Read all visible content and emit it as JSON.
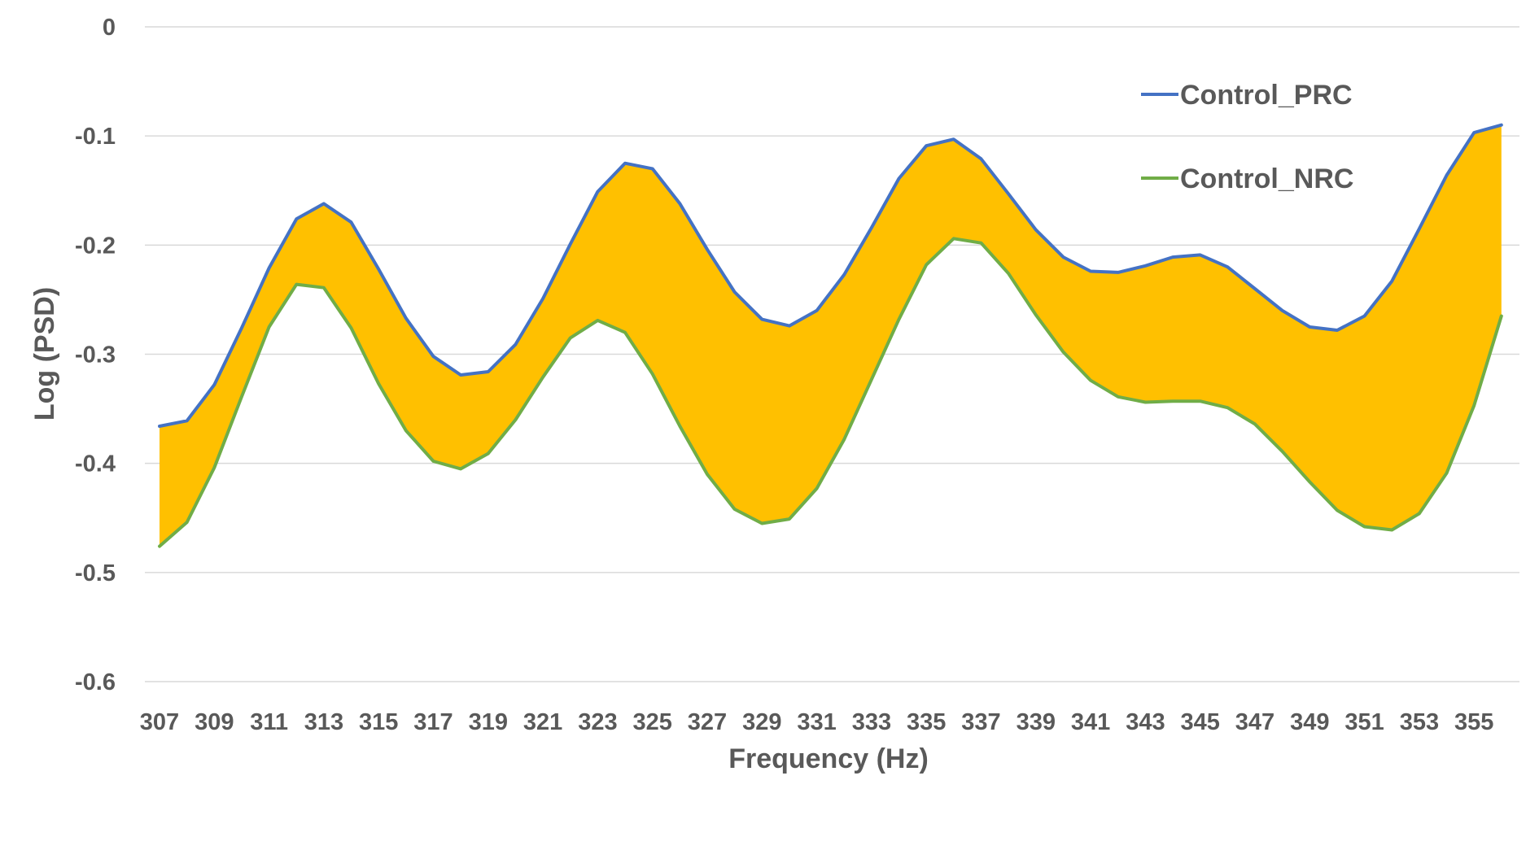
{
  "chart_data": {
    "type": "area",
    "xlabel": "Frequency (Hz)",
    "ylabel": "Log (PSD)",
    "ylim": [
      -0.6,
      0
    ],
    "yticks": [
      "0",
      "-0.1",
      "-0.2",
      "-0.3",
      "-0.4",
      "-0.5",
      "-0.6"
    ],
    "ytick_values": [
      0,
      -0.1,
      -0.2,
      -0.3,
      -0.4,
      -0.5,
      -0.6
    ],
    "xtick_labels": [
      "307",
      "309",
      "311",
      "313",
      "315",
      "317",
      "319",
      "321",
      "323",
      "325",
      "327",
      "329",
      "331",
      "333",
      "335",
      "337",
      "339",
      "341",
      "343",
      "345",
      "347",
      "349",
      "351",
      "353",
      "355"
    ],
    "x": [
      307,
      308,
      309,
      310,
      311,
      312,
      313,
      314,
      315,
      316,
      317,
      318,
      319,
      320,
      321,
      322,
      323,
      324,
      325,
      326,
      327,
      328,
      329,
      330,
      331,
      332,
      333,
      334,
      335,
      336,
      337,
      338,
      339,
      340,
      341,
      342,
      343,
      344,
      345,
      346,
      347,
      348,
      349,
      350,
      351,
      352,
      353,
      354,
      355,
      356
    ],
    "grid": true,
    "legend_position": "top-right",
    "fill_between_color": "#FFC000",
    "series": [
      {
        "name": "Control_PRC",
        "color": "#4472C4",
        "values": [
          -0.366,
          -0.361,
          -0.328,
          -0.276,
          -0.221,
          -0.176,
          -0.162,
          -0.179,
          -0.222,
          -0.267,
          -0.302,
          -0.319,
          -0.316,
          -0.291,
          -0.249,
          -0.199,
          -0.151,
          -0.125,
          -0.13,
          -0.162,
          -0.204,
          -0.243,
          -0.268,
          -0.274,
          -0.26,
          -0.227,
          -0.184,
          -0.139,
          -0.109,
          -0.103,
          -0.121,
          -0.153,
          -0.186,
          -0.211,
          -0.224,
          -0.225,
          -0.219,
          -0.211,
          -0.209,
          -0.22,
          -0.24,
          -0.26,
          -0.275,
          -0.278,
          -0.265,
          -0.233,
          -0.185,
          -0.136,
          -0.097,
          -0.09
        ]
      },
      {
        "name": "Control_NRC",
        "color": "#70AD47",
        "values": [
          -0.476,
          -0.454,
          -0.404,
          -0.339,
          -0.275,
          -0.236,
          -0.239,
          -0.276,
          -0.327,
          -0.37,
          -0.398,
          -0.405,
          -0.391,
          -0.36,
          -0.321,
          -0.285,
          -0.269,
          -0.28,
          -0.318,
          -0.366,
          -0.41,
          -0.442,
          -0.455,
          -0.451,
          -0.423,
          -0.378,
          -0.323,
          -0.268,
          -0.218,
          -0.194,
          -0.198,
          -0.226,
          -0.264,
          -0.298,
          -0.324,
          -0.339,
          -0.344,
          -0.343,
          -0.343,
          -0.349,
          -0.364,
          -0.389,
          -0.417,
          -0.443,
          -0.458,
          -0.461,
          -0.446,
          -0.409,
          -0.347,
          -0.265
        ]
      }
    ]
  }
}
